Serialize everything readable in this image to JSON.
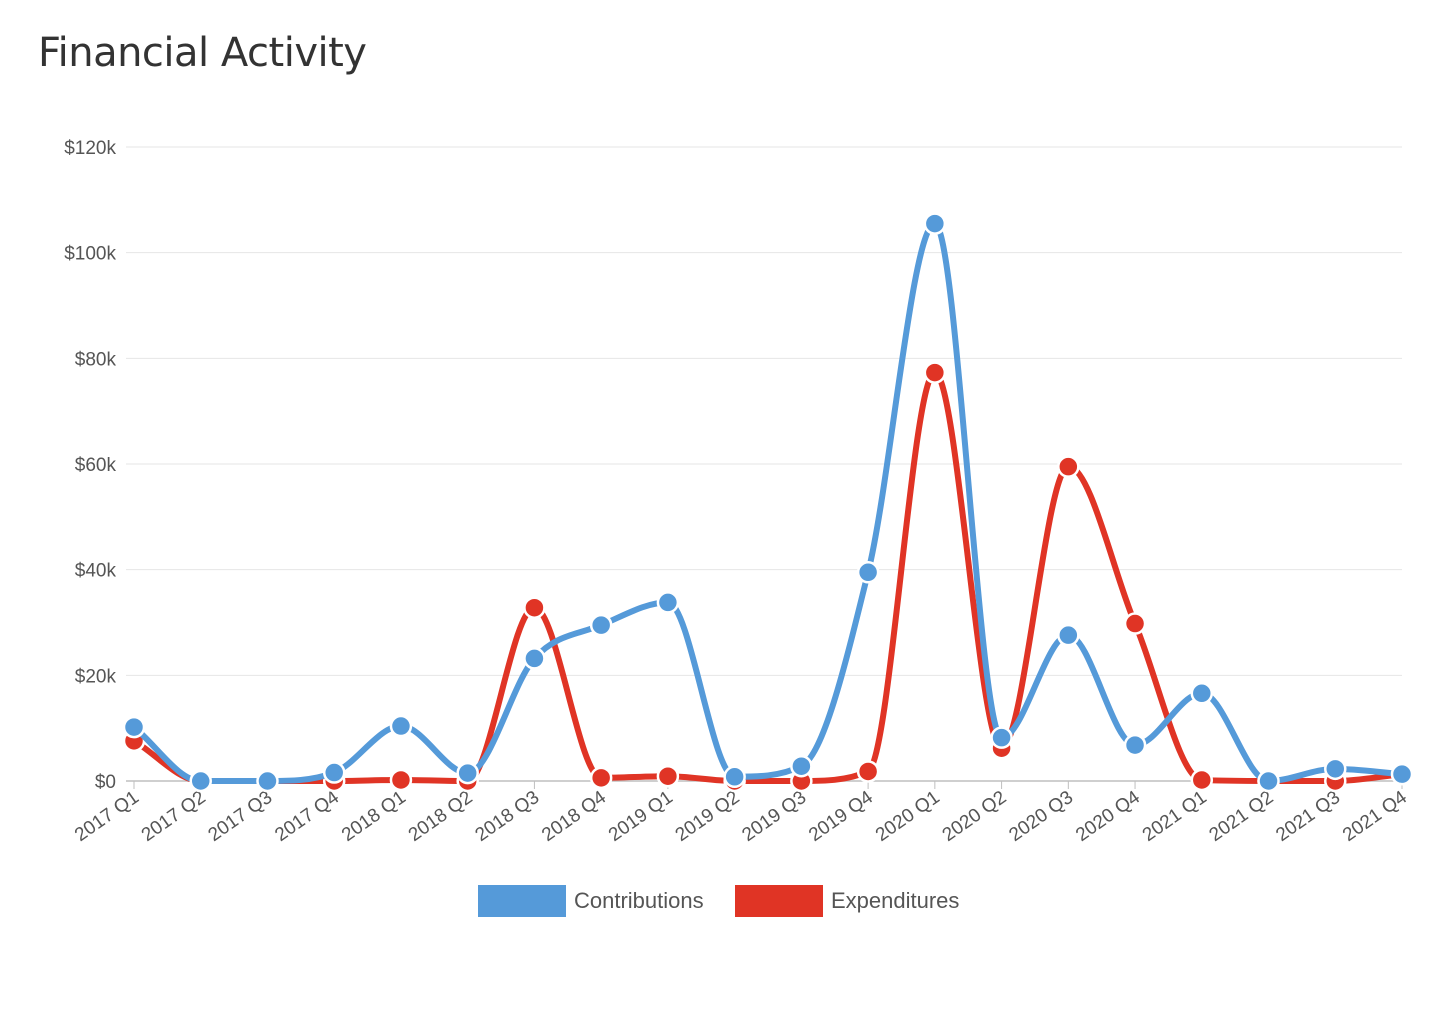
{
  "page": {
    "title": "Financial Activity"
  },
  "chart_data": {
    "type": "line",
    "title": "Financial Activity",
    "xlabel": "",
    "ylabel": "",
    "categories": [
      "2017 Q1",
      "2017 Q2",
      "2017 Q3",
      "2017 Q4",
      "2018 Q1",
      "2018 Q2",
      "2018 Q3",
      "2018 Q4",
      "2019 Q1",
      "2019 Q2",
      "2019 Q3",
      "2019 Q4",
      "2020 Q1",
      "2020 Q2",
      "2020 Q3",
      "2020 Q4",
      "2021 Q1",
      "2021 Q2",
      "2021 Q3",
      "2021 Q4"
    ],
    "ylim": [
      0,
      120000
    ],
    "yticks": [
      {
        "value": 0,
        "label": "$0"
      },
      {
        "value": 20000,
        "label": "$20k"
      },
      {
        "value": 40000,
        "label": "$40k"
      },
      {
        "value": 60000,
        "label": "$60k"
      },
      {
        "value": 80000,
        "label": "$80k"
      },
      {
        "value": 100000,
        "label": "$100k"
      },
      {
        "value": 120000,
        "label": "$120k"
      }
    ],
    "grid": true,
    "legend_position": "bottom",
    "series": [
      {
        "name": "Contributions",
        "color": "#559ad9",
        "values": [
          10200,
          0,
          0,
          1600,
          10400,
          1500,
          23200,
          29500,
          33800,
          800,
          2800,
          39500,
          105500,
          8200,
          27600,
          6800,
          16600,
          0,
          2300,
          1300
        ]
      },
      {
        "name": "Expenditures",
        "color": "#e03425",
        "values": [
          7600,
          0,
          0,
          0,
          200,
          0,
          32800,
          600,
          900,
          0,
          0,
          1800,
          77300,
          6200,
          59500,
          29800,
          200,
          0,
          0,
          1300
        ]
      }
    ]
  }
}
